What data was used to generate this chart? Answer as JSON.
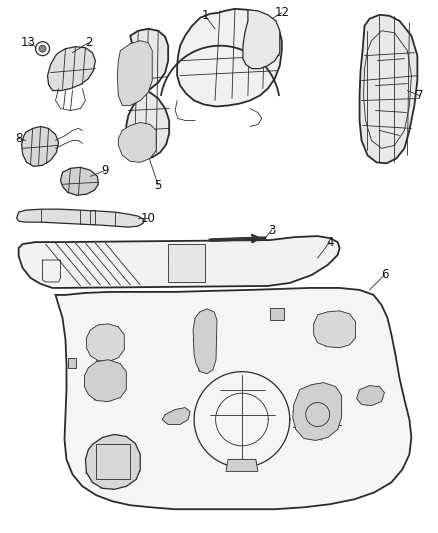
{
  "background_color": "#ffffff",
  "figure_width": 4.38,
  "figure_height": 5.33,
  "dpi": 100,
  "line_color": "#2a2a2a",
  "label_fontsize": 8.5,
  "label_color": "#111111",
  "panel_face": "#f5f5f5",
  "panel_edge": "#2a2a2a"
}
